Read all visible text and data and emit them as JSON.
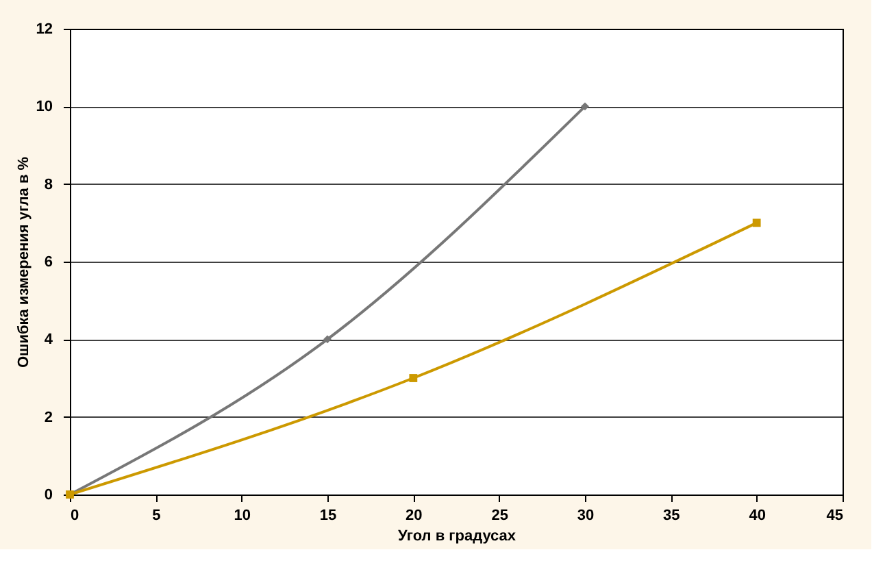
{
  "chart_data": {
    "type": "line",
    "xlabel": "Угол в градусах",
    "ylabel": "Ошибка измерения угла в %",
    "series": [
      {
        "color": "#777777",
        "marker": "diamond",
        "line_style": "solid",
        "x": [
          0,
          15,
          30
        ],
        "values": [
          0,
          4,
          10
        ]
      },
      {
        "color": "#cc9900",
        "marker": "square",
        "line_style": "solid",
        "x": [
          0,
          20,
          40
        ],
        "values": [
          0,
          3,
          7
        ]
      }
    ],
    "xlim": [
      0,
      45
    ],
    "xticks": [
      0,
      5,
      10,
      15,
      20,
      25,
      30,
      35,
      40,
      45
    ],
    "ylim": [
      0,
      12
    ],
    "yticks": [
      0,
      2,
      4,
      6,
      8,
      10,
      12
    ],
    "grid": "y"
  }
}
